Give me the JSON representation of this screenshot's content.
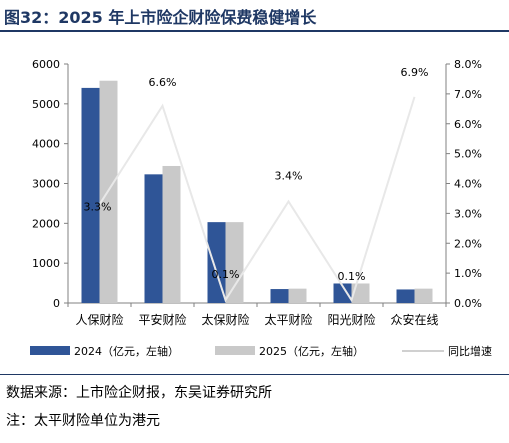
{
  "title": "图32：2025 年上市险企财险保费稳健增长",
  "source": "数据来源：上市险企财报，东吴证券研究所",
  "note": "注：太平财险单位为港元",
  "chart_data": {
    "type": "bar",
    "categories": [
      "人保财险",
      "平安财险",
      "太保财险",
      "太平财险",
      "阳光财险",
      "众安在线"
    ],
    "series": [
      {
        "name": "2024（亿元，左轴）",
        "values": [
          5400,
          3230,
          2030,
          350,
          490,
          340
        ],
        "color": "#2F5597",
        "axis": "left"
      },
      {
        "name": "2025（亿元，左轴）",
        "values": [
          5580,
          3440,
          2030,
          360,
          490,
          360
        ],
        "color": "#C9C9C9",
        "axis": "left"
      }
    ],
    "line_series": {
      "name": "同比增速",
      "values": [
        3.3,
        6.6,
        0.1,
        3.4,
        0.1,
        6.9
      ],
      "labels": [
        "3.3%",
        "6.6%",
        "0.1%",
        "3.4%",
        "0.1%",
        "6.9%"
      ],
      "color": "#E8E8E8",
      "axis": "right"
    },
    "left_axis": {
      "ylim": [
        0,
        6000
      ],
      "ticks": [
        "0",
        "1000",
        "2000",
        "3000",
        "4000",
        "5000",
        "6000"
      ]
    },
    "right_axis": {
      "ylim": [
        0,
        8
      ],
      "ticks": [
        "0.0%",
        "1.0%",
        "2.0%",
        "3.0%",
        "4.0%",
        "5.0%",
        "6.0%",
        "7.0%",
        "8.0%"
      ]
    },
    "grid": false,
    "legend_position": "bottom"
  }
}
